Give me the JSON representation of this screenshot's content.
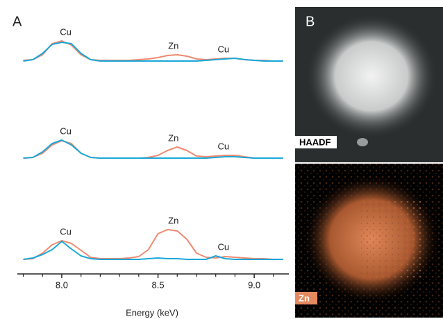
{
  "chart_data": {
    "type": "line",
    "panel_label": "A",
    "xlabel": "Energy (keV)",
    "x": [
      7.8,
      7.85,
      7.9,
      7.95,
      8.0,
      8.05,
      8.1,
      8.15,
      8.2,
      8.25,
      8.3,
      8.35,
      8.4,
      8.45,
      8.5,
      8.55,
      8.6,
      8.65,
      8.7,
      8.75,
      8.8,
      8.85,
      8.9,
      8.95,
      9.0,
      9.05,
      9.1,
      9.15
    ],
    "xlim": [
      7.78,
      9.18
    ],
    "xticks": [
      {
        "value": 8,
        "label": "8.0"
      },
      {
        "value": 8.5,
        "label": "8.5"
      },
      {
        "value": 9,
        "label": "9.0"
      }
    ],
    "xminor_ticks": [
      7.8,
      7.9,
      8.1,
      8.2,
      8.3,
      8.4,
      8.6,
      8.7,
      8.8,
      8.9,
      9.1
    ],
    "ylim": [
      0,
      60
    ],
    "panels": [
      {
        "series": [
          {
            "color": "#ef8a6f",
            "values": [
              2,
              3,
              10,
              26,
              30,
              24,
              10,
              3,
              2,
              2,
              2,
              2,
              3,
              4,
              6,
              9,
              10,
              8,
              4,
              3,
              4,
              5,
              5,
              3,
              2,
              2,
              1,
              1
            ]
          },
          {
            "color": "#1aa7d8",
            "values": [
              1,
              3,
              12,
              25,
              28,
              26,
              12,
              3,
              1,
              1,
              1,
              1,
              1,
              1,
              1,
              1,
              1,
              1,
              1,
              2,
              3,
              4,
              5,
              3,
              2,
              1,
              1,
              1
            ]
          }
        ],
        "annotations": [
          {
            "text": "Cu",
            "x": 8.02
          },
          {
            "text": "Zn",
            "x": 8.58
          },
          {
            "text": "Cu",
            "x": 8.84
          }
        ]
      },
      {
        "series": [
          {
            "color": "#ef8a6f",
            "values": [
              1,
              2,
              8,
              20,
              26,
              22,
              8,
              2,
              1,
              1,
              1,
              1,
              1,
              2,
              5,
              12,
              17,
              12,
              4,
              3,
              4,
              5,
              5,
              3,
              1,
              1,
              1,
              1
            ]
          },
          {
            "color": "#1aa7d8",
            "values": [
              1,
              2,
              10,
              22,
              27,
              20,
              8,
              2,
              1,
              1,
              1,
              1,
              1,
              1,
              1,
              1,
              1,
              1,
              1,
              1,
              2,
              3,
              3,
              2,
              1,
              1,
              1,
              1
            ]
          }
        ],
        "annotations": [
          {
            "text": "Cu",
            "x": 8.02
          },
          {
            "text": "Zn",
            "x": 8.58
          },
          {
            "text": "Cu",
            "x": 8.84
          }
        ]
      },
      {
        "series": [
          {
            "color": "#ef8a6f",
            "values": [
              1,
              2,
              10,
              22,
              28,
              24,
              14,
              4,
              2,
              2,
              2,
              3,
              5,
              15,
              38,
              44,
              42,
              30,
              10,
              4,
              3,
              5,
              4,
              3,
              2,
              2,
              1,
              1
            ]
          },
          {
            "color": "#1aa7d8",
            "values": [
              1,
              3,
              8,
              15,
              27,
              16,
              6,
              2,
              1,
              1,
              1,
              1,
              1,
              2,
              3,
              2,
              2,
              1,
              1,
              1,
              6,
              2,
              1,
              1,
              1,
              1,
              1,
              1
            ]
          }
        ],
        "annotations": [
          {
            "text": "Cu",
            "x": 8.02
          },
          {
            "text": "Zn",
            "x": 8.58
          },
          {
            "text": "Cu",
            "x": 8.84
          }
        ]
      }
    ]
  },
  "images": {
    "panel_label": "B",
    "top_label": "HAADF",
    "bottom_label": "Zn"
  }
}
